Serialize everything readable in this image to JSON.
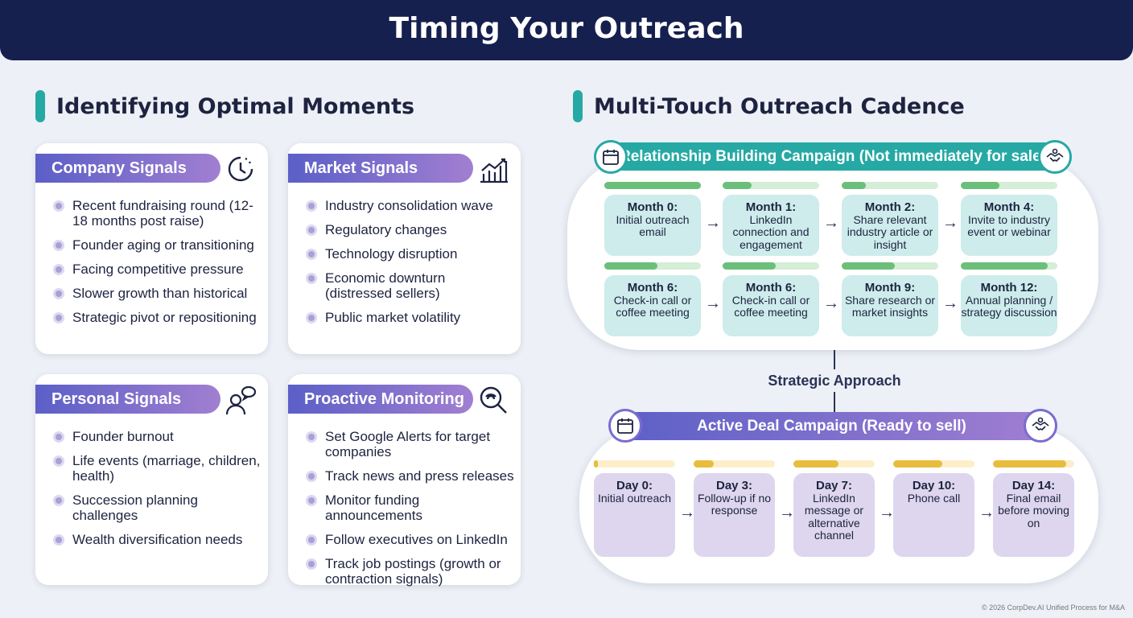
{
  "title": "Timing Your Outreach",
  "left_section": "Identifying Optimal Moments",
  "right_section": "Multi-Touch Outreach Cadence",
  "cards": [
    {
      "title": "Company Signals",
      "icon": "clock-icon",
      "items": [
        "Recent fundraising round (12-18 months post raise)",
        "Founder aging or transitioning",
        "Facing competitive pressure",
        "Slower growth than historical",
        "Strategic pivot or repositioning"
      ]
    },
    {
      "title": "Market Signals",
      "icon": "bar-chart-growth-icon",
      "items": [
        "Industry consolidation wave",
        "Regulatory changes",
        "Technology disruption",
        "Economic downturn (distressed sellers)",
        "Public market volatility"
      ]
    },
    {
      "title": "Personal Signals",
      "icon": "person-speech-icon",
      "items": [
        "Founder burnout",
        "Life events (marriage, children, health)",
        "Succession planning challenges",
        "Wealth diversification needs"
      ]
    },
    {
      "title": "Proactive Monitoring",
      "icon": "search-signal-icon",
      "items": [
        "Set Google Alerts for target companies",
        "Track news and press releases",
        "Monitor funding announcements",
        "Follow executives on LinkedIn",
        "Track job postings (growth or contraction signals)"
      ]
    }
  ],
  "relationship": {
    "title": "Relationship Building Campaign (Not immediately for sale)",
    "color": "#26a9a4",
    "steps": [
      {
        "label": "Month 0:",
        "text": "Initial outreach email",
        "progress": 100
      },
      {
        "label": "Month 1:",
        "text": "LinkedIn connection and engagement",
        "progress": 30
      },
      {
        "label": "Month 2:",
        "text": "Share relevant industry article or insight",
        "progress": 25
      },
      {
        "label": "Month 4:",
        "text": "Invite to industry event or webinar",
        "progress": 40
      },
      {
        "label": "Month 6:",
        "text": "Check-in call or coffee meeting",
        "progress": 55
      },
      {
        "label": "Month 6:",
        "text": "Check-in call or coffee meeting",
        "progress": 55
      },
      {
        "label": "Month 9:",
        "text": "Share research or market insights",
        "progress": 55
      },
      {
        "label": "Month 12:",
        "text": "Annual planning / strategy discussion",
        "progress": 90
      }
    ]
  },
  "connector": "Strategic Approach",
  "active": {
    "title": "Active Deal Campaign (Ready to sell)",
    "steps": [
      {
        "label": "Day 0:",
        "text": "Initial outreach",
        "progress": 5
      },
      {
        "label": "Day 3:",
        "text": "Follow-up if no response",
        "progress": 25
      },
      {
        "label": "Day 7:",
        "text": "LinkedIn message or alternative channel",
        "progress": 55
      },
      {
        "label": "Day 10:",
        "text": "Phone call",
        "progress": 60
      },
      {
        "label": "Day 14:",
        "text": "Final email before moving on",
        "progress": 90
      }
    ]
  },
  "footer": "© 2026 CorpDev.AI Unified Process for M&A"
}
